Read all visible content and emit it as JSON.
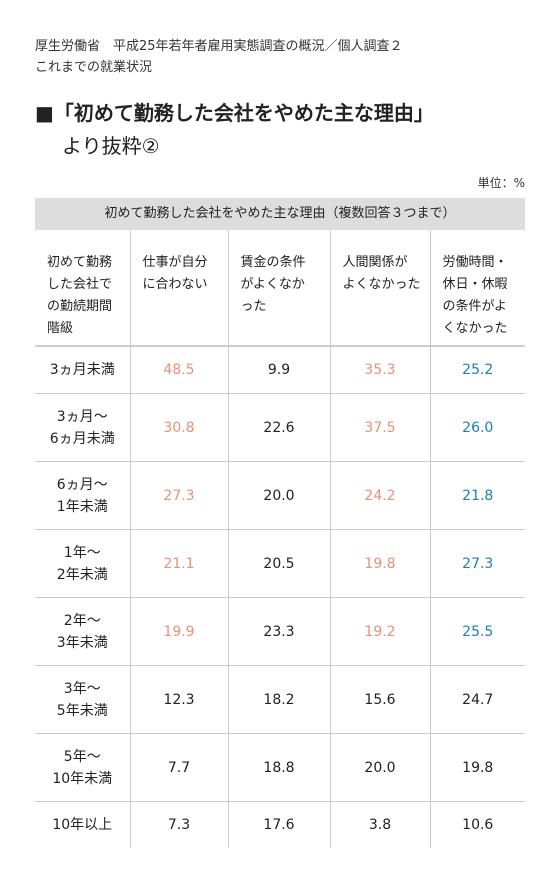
{
  "header": {
    "source_lines": [
      "厚生労働省　平成25年若年者雇用実態調査の概況／個人調査２",
      "これまでの就業状況"
    ],
    "title": "■「初めて勤務した会社をやめた主な理由」",
    "title_line2": "より抜粋②",
    "unit": "単位：%"
  },
  "table": {
    "caption": "初めて勤務した会社をやめた主な理由（複数回答３つまで）",
    "columns": [
      [
        "初めて勤務",
        "した会社で",
        "の勤続期間",
        "階級"
      ],
      [
        "仕事が自分",
        "に合わない"
      ],
      [
        "賃金の条件",
        "がよくなか",
        "った"
      ],
      [
        "人間関係が",
        "よくなかった"
      ],
      [
        "労働時間・",
        "休日・休暇",
        "の条件がよ",
        "くなかった"
      ]
    ],
    "column_colors": [
      "#222222",
      "#e8907a",
      "#222222",
      "#e8907a",
      "#1a7fb5"
    ],
    "rows": [
      {
        "label": [
          "3ヵ月未満"
        ],
        "cells": [
          "48.5",
          "9.9",
          "35.3",
          "25.2"
        ],
        "highlight": true
      },
      {
        "label": [
          "3ヵ月～",
          "6ヵ月未満"
        ],
        "cells": [
          "30.8",
          "22.6",
          "37.5",
          "26.0"
        ],
        "highlight": true
      },
      {
        "label": [
          "6ヵ月～",
          "1年未満"
        ],
        "cells": [
          "27.3",
          "20.0",
          "24.2",
          "21.8"
        ],
        "highlight": true
      },
      {
        "label": [
          "1年～",
          "2年未満"
        ],
        "cells": [
          "21.1",
          "20.5",
          "19.8",
          "27.3"
        ],
        "highlight": true
      },
      {
        "label": [
          "2年～",
          "3年未満"
        ],
        "cells": [
          "19.9",
          "23.3",
          "19.2",
          "25.5"
        ],
        "highlight": true
      },
      {
        "label": [
          "3年～",
          "5年未満"
        ],
        "cells": [
          "12.3",
          "18.2",
          "15.6",
          "24.7"
        ],
        "highlight": false
      },
      {
        "label": [
          "5年～",
          "10年未満"
        ],
        "cells": [
          "7.7",
          "18.8",
          "20.0",
          "19.8"
        ],
        "highlight": false
      },
      {
        "label": [
          "10年以上"
        ],
        "cells": [
          "7.3",
          "17.6",
          "3.8",
          "10.6"
        ],
        "highlight": false
      }
    ]
  }
}
